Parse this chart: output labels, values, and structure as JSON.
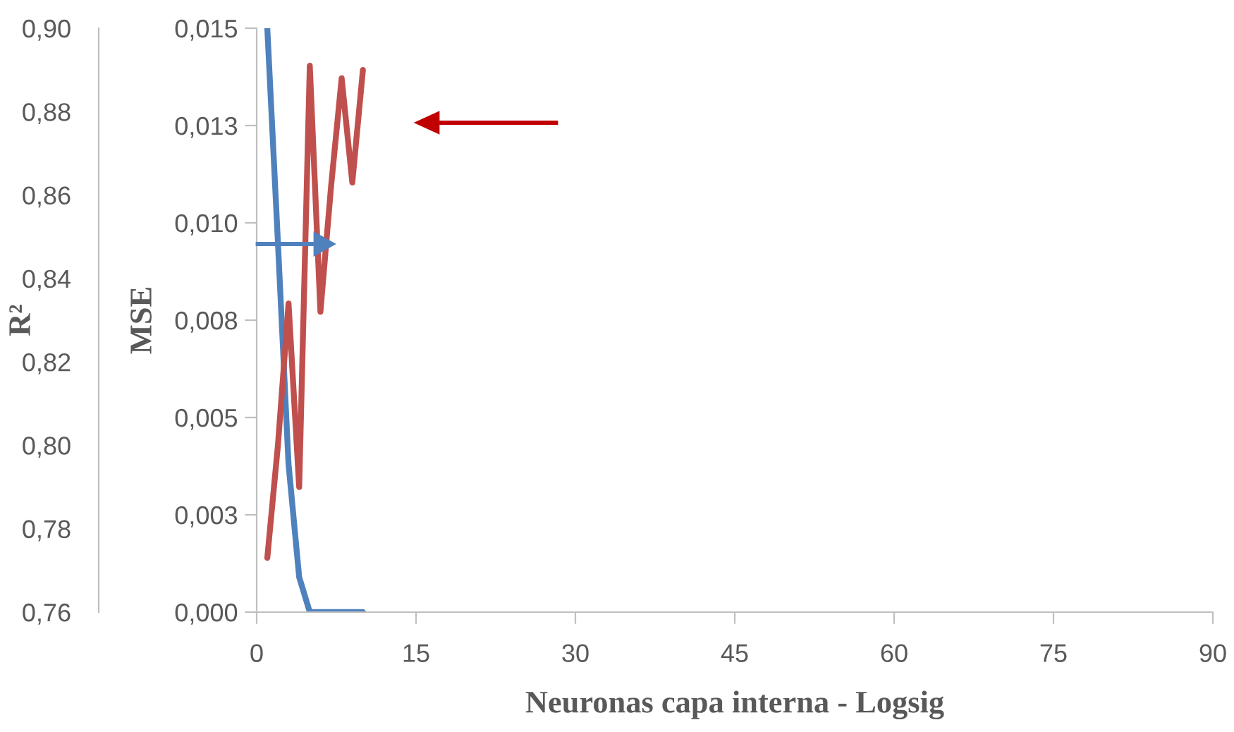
{
  "chart_data": {
    "type": "line",
    "xlabel": "Neuronas capa interna - Logsig",
    "ylabel": "MSE",
    "y2label": "R²",
    "x": [
      1,
      2,
      3,
      4,
      5,
      6,
      7,
      8,
      9,
      10
    ],
    "series": [
      {
        "color": "#4f81bd",
        "axis": "y",
        "values": [
          0.015,
          0.0095,
          0.0038,
          0.0009,
          0.0,
          0.0,
          0.0,
          0.0,
          0.0,
          0.0
        ]
      },
      {
        "color": "#c0504d",
        "axis": "y2",
        "values": [
          0.773,
          0.8,
          0.834,
          0.79,
          0.891,
          0.832,
          0.862,
          0.888,
          0.863,
          0.89
        ]
      }
    ],
    "xlim": [
      0,
      90
    ],
    "xticks": [
      0,
      15,
      30,
      45,
      60,
      75,
      90
    ],
    "ylim": [
      0,
      0.015
    ],
    "yticks": [
      {
        "value": 0,
        "label": "0,000"
      },
      {
        "value": 0.0025,
        "label": "0,003"
      },
      {
        "value": 0.005,
        "label": "0,005"
      },
      {
        "value": 0.0075,
        "label": "0,008"
      },
      {
        "value": 0.01,
        "label": "0,010"
      },
      {
        "value": 0.0125,
        "label": "0,013"
      },
      {
        "value": 0.015,
        "label": "0,015"
      }
    ],
    "y2lim": [
      0.76,
      0.9
    ],
    "y2ticks": [
      {
        "value": 0.76,
        "label": "0,76"
      },
      {
        "value": 0.78,
        "label": "0,78"
      },
      {
        "value": 0.8,
        "label": "0,80"
      },
      {
        "value": 0.82,
        "label": "0,82"
      },
      {
        "value": 0.84,
        "label": "0,84"
      },
      {
        "value": 0.86,
        "label": "0,86"
      },
      {
        "value": 0.88,
        "label": "0,88"
      },
      {
        "value": 0.9,
        "label": "0,90"
      }
    ],
    "grid": false,
    "legend": false,
    "marker": "none",
    "line_style": "solid"
  }
}
